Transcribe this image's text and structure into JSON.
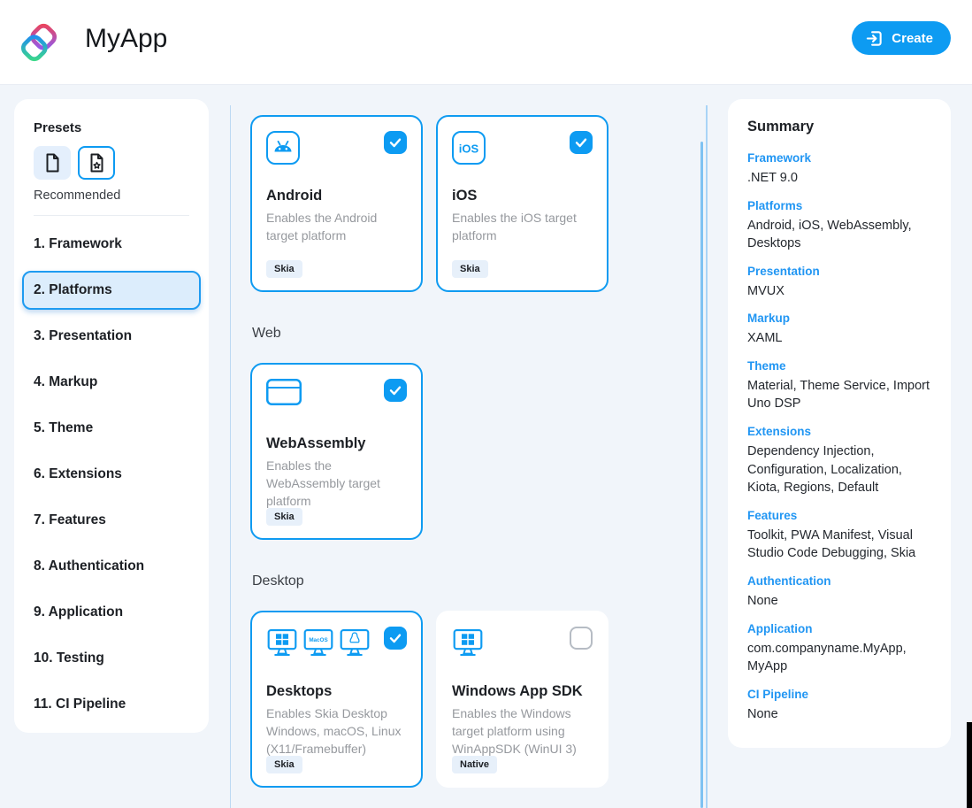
{
  "header": {
    "app_title": "MyApp",
    "create_label": "Create"
  },
  "sidebar": {
    "presets_title": "Presets",
    "presets_caption": "Recommended",
    "presets": [
      {
        "name": "blank",
        "icon": "blank-document-icon",
        "selected": false
      },
      {
        "name": "recommended",
        "icon": "star-document-icon",
        "selected": true
      }
    ],
    "steps": [
      {
        "label": "1. Framework",
        "selected": false
      },
      {
        "label": "2. Platforms",
        "selected": true
      },
      {
        "label": "3. Presentation",
        "selected": false
      },
      {
        "label": "4. Markup",
        "selected": false
      },
      {
        "label": "5. Theme",
        "selected": false
      },
      {
        "label": "6. Extensions",
        "selected": false
      },
      {
        "label": "7. Features",
        "selected": false
      },
      {
        "label": "8. Authentication",
        "selected": false
      },
      {
        "label": "9. Application",
        "selected": false
      },
      {
        "label": "10. Testing",
        "selected": false
      },
      {
        "label": "11. CI Pipeline",
        "selected": false
      }
    ]
  },
  "main": {
    "sections": [
      {
        "heading": "",
        "cards": [
          {
            "title": "Android",
            "description": "Enables the Android target platform",
            "badge": "Skia",
            "icons": [
              "android-icon"
            ],
            "checked": true,
            "selected": true
          },
          {
            "title": "iOS",
            "description": "Enables the iOS target platform",
            "badge": "Skia",
            "icons": [
              "ios-icon"
            ],
            "checked": true,
            "selected": true
          }
        ]
      },
      {
        "heading": "Web",
        "cards": [
          {
            "title": "WebAssembly",
            "description": "Enables the WebAssembly target platform",
            "badge": "Skia",
            "icons": [
              "browser-icon"
            ],
            "checked": true,
            "selected": true
          }
        ]
      },
      {
        "heading": "Desktop",
        "cards": [
          {
            "title": "Desktops",
            "description": "Enables Skia Desktop Windows, macOS, Linux (X11/Framebuffer)",
            "badge": "Skia",
            "icons": [
              "windows-monitor-icon",
              "macos-monitor-icon",
              "linux-monitor-icon"
            ],
            "checked": true,
            "selected": true
          },
          {
            "title": "Windows App SDK",
            "description": "Enables the Windows target platform using WinAppSDK (WinUI 3)",
            "badge": "Native",
            "icons": [
              "windows-monitor-icon"
            ],
            "checked": false,
            "selected": false
          }
        ]
      }
    ]
  },
  "summary": {
    "title": "Summary",
    "items": [
      {
        "label": "Framework",
        "value": ".NET 9.0"
      },
      {
        "label": "Platforms",
        "value": "Android, iOS, WebAssembly, Desktops"
      },
      {
        "label": "Presentation",
        "value": "MVUX"
      },
      {
        "label": "Markup",
        "value": "XAML"
      },
      {
        "label": "Theme",
        "value": "Material, Theme Service, Import Uno DSP"
      },
      {
        "label": "Extensions",
        "value": "Dependency Injection, Configuration, Localization, Kiota, Regions, Default"
      },
      {
        "label": "Features",
        "value": "Toolkit, PWA Manifest, Visual Studio Code Debugging, Skia"
      },
      {
        "label": "Authentication",
        "value": "None"
      },
      {
        "label": "Application",
        "value": "com.companyname.MyApp, MyApp"
      },
      {
        "label": "CI Pipeline",
        "value": "None"
      }
    ]
  },
  "icon_labels": {
    "ios": "iOS",
    "macos": "MacOS"
  },
  "colors": {
    "accent": "#0d9bf2",
    "summary_label": "#2196f3",
    "selected_nav_bg": "#dcedfc",
    "badge_bg": "#e7f0fa",
    "page_bg": "#f1f5fa"
  }
}
